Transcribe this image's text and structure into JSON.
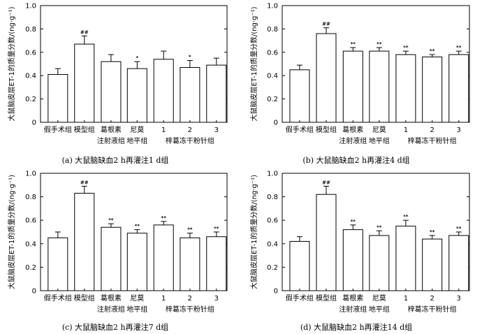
{
  "chart_data": [
    {
      "type": "bar",
      "categories": [
        "假手术组",
        "模型组",
        "葛根素注射液组",
        "尼莫地平组",
        "1",
        "2",
        "3"
      ],
      "category_lines": [
        [
          "假手术组"
        ],
        [
          "模型组"
        ],
        [
          "葛根素",
          "注射液组"
        ],
        [
          "尼莫",
          "地平组"
        ],
        [
          "1"
        ],
        [
          "2"
        ],
        [
          "3"
        ]
      ],
      "group_label": "梓葛冻干粉针组",
      "values": [
        0.41,
        0.67,
        0.52,
        0.46,
        0.54,
        0.47,
        0.49
      ],
      "errors": [
        0.05,
        0.07,
        0.06,
        0.06,
        0.07,
        0.06,
        0.06
      ],
      "annotations": [
        "",
        "##",
        "",
        "*",
        "",
        "*",
        ""
      ],
      "ylabel": "大鼠脑皮层ET-1的质量分数/(ng·g⁻¹)",
      "ylim": [
        0,
        1.0
      ],
      "yticks": [
        "0",
        "0.2",
        "0.4",
        "0.6",
        "0.8",
        "1.0"
      ],
      "caption": "(a) 大鼠脑缺血2 h再灌注1 d组"
    },
    {
      "type": "bar",
      "categories": [
        "假手术组",
        "模型组",
        "葛根素注射液组",
        "尼莫地平组",
        "1",
        "2",
        "3"
      ],
      "category_lines": [
        [
          "假手术组"
        ],
        [
          "模型组"
        ],
        [
          "葛根素",
          "注射液组"
        ],
        [
          "尼莫",
          "地平组"
        ],
        [
          "1"
        ],
        [
          "2"
        ],
        [
          "3"
        ]
      ],
      "group_label": "梓葛冻干粉针组",
      "values": [
        0.45,
        0.76,
        0.61,
        0.61,
        0.58,
        0.56,
        0.58
      ],
      "errors": [
        0.04,
        0.05,
        0.03,
        0.03,
        0.03,
        0.02,
        0.03
      ],
      "annotations": [
        "",
        "##",
        "**",
        "**",
        "**",
        "**",
        "**"
      ],
      "ylabel": "大鼠脑皮层ET-1的质量分数/(ng·g⁻¹)",
      "ylim": [
        0,
        1.0
      ],
      "yticks": [
        "0",
        "0.2",
        "0.4",
        "0.6",
        "0.8",
        "1.0"
      ],
      "caption": "(b) 大鼠脑缺血2 h再灌注4 d组"
    },
    {
      "type": "bar",
      "categories": [
        "假手术组",
        "模型组",
        "葛根素注射液组",
        "尼莫地平组",
        "1",
        "2",
        "3"
      ],
      "category_lines": [
        [
          "假手术组"
        ],
        [
          "模型组"
        ],
        [
          "葛根素",
          "注射液组"
        ],
        [
          "尼莫",
          "地平组"
        ],
        [
          "1"
        ],
        [
          "2"
        ],
        [
          "3"
        ]
      ],
      "group_label": "梓葛冻干粉针组",
      "values": [
        0.45,
        0.83,
        0.54,
        0.49,
        0.56,
        0.45,
        0.46
      ],
      "errors": [
        0.05,
        0.06,
        0.03,
        0.03,
        0.03,
        0.04,
        0.04
      ],
      "annotations": [
        "",
        "##",
        "**",
        "**",
        "**",
        "**",
        "**"
      ],
      "ylabel": "大鼠脑皮层ET-1的质量分数/(ng·g⁻¹)",
      "ylim": [
        0,
        1.0
      ],
      "yticks": [
        "0",
        "0.2",
        "0.4",
        "0.6",
        "0.8",
        "1.0"
      ],
      "caption": "(c) 大鼠脑缺血2 h再灌注7 d组"
    },
    {
      "type": "bar",
      "categories": [
        "假手术组",
        "模型组",
        "葛根素注射液组",
        "尼莫地平组",
        "1",
        "2",
        "3"
      ],
      "category_lines": [
        [
          "假手术组"
        ],
        [
          "模型组"
        ],
        [
          "葛根素",
          "注射液组"
        ],
        [
          "尼莫",
          "地平组"
        ],
        [
          "1"
        ],
        [
          "2"
        ],
        [
          "3"
        ]
      ],
      "group_label": "梓葛冻干粉针组",
      "values": [
        0.42,
        0.82,
        0.52,
        0.47,
        0.55,
        0.44,
        0.47
      ],
      "errors": [
        0.04,
        0.07,
        0.04,
        0.04,
        0.05,
        0.03,
        0.03
      ],
      "annotations": [
        "",
        "##",
        "**",
        "**",
        "**",
        "**",
        "**"
      ],
      "ylabel": "大鼠脑皮层ET-1的质量分数/(ng·g⁻¹)",
      "ylim": [
        0,
        1.0
      ],
      "yticks": [
        "0",
        "0.2",
        "0.4",
        "0.6",
        "0.8",
        "1.0"
      ],
      "caption": "(d) 大鼠脑缺血2 h再灌注14 d组"
    }
  ]
}
